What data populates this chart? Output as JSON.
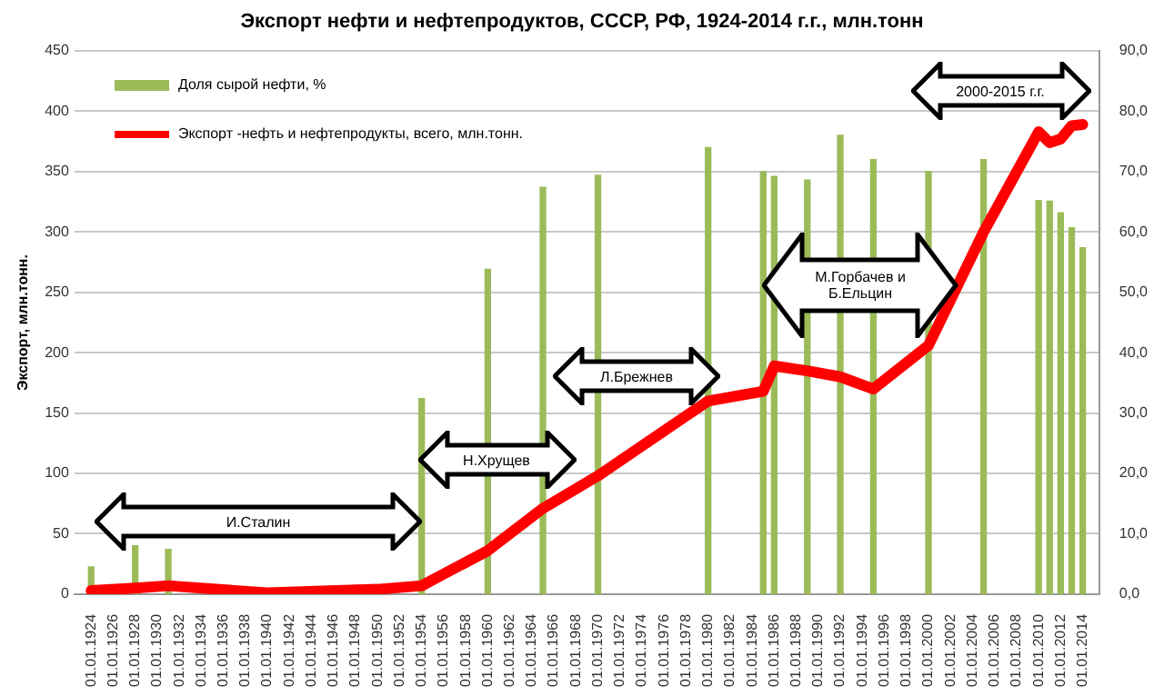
{
  "chart_data": {
    "type": "line",
    "title": "Экспорт нефти и нефтепродуктов,  СССР, РФ, 1924-2014 г.г., млн.тонн",
    "ylabel": "Экспорт, млн.тонн.",
    "xlim": [
      "1923-07",
      "2014-07"
    ],
    "xticks": [
      {
        "value": "1924",
        "label": "01.01.1924"
      },
      {
        "value": "1926",
        "label": "01.01.1926"
      },
      {
        "value": "1928",
        "label": "01.01.1928"
      },
      {
        "value": "1930",
        "label": "01.01.1930"
      },
      {
        "value": "1932",
        "label": "01.01.1932"
      },
      {
        "value": "1934",
        "label": "01.01.1934"
      },
      {
        "value": "1936",
        "label": "01.01.1936"
      },
      {
        "value": "1938",
        "label": "01.01.1938"
      },
      {
        "value": "1940",
        "label": "01.01.1940"
      },
      {
        "value": "1942",
        "label": "01.01.1942"
      },
      {
        "value": "1944",
        "label": "01.01.1944"
      },
      {
        "value": "1946",
        "label": "01.01.1946"
      },
      {
        "value": "1948",
        "label": "01.01.1948"
      },
      {
        "value": "1950",
        "label": "01.01.1950"
      },
      {
        "value": "1952",
        "label": "01.01.1952"
      },
      {
        "value": "1954",
        "label": "01.01.1954"
      },
      {
        "value": "1956",
        "label": "01.01.1956"
      },
      {
        "value": "1958",
        "label": "01.01.1958"
      },
      {
        "value": "1960",
        "label": "01.01.1960"
      },
      {
        "value": "1962",
        "label": "01.01.1962"
      },
      {
        "value": "1964",
        "label": "01.01.1964"
      },
      {
        "value": "1966",
        "label": "01.01.1966"
      },
      {
        "value": "1968",
        "label": "01.01.1968"
      },
      {
        "value": "1970",
        "label": "01.01.1970"
      },
      {
        "value": "1972",
        "label": "01.01.1972"
      },
      {
        "value": "1974",
        "label": "01.01.1974"
      },
      {
        "value": "1976",
        "label": "01.01.1976"
      },
      {
        "value": "1978",
        "label": "01.01.1978"
      },
      {
        "value": "1980",
        "label": "01.01.1980"
      },
      {
        "value": "1982",
        "label": "01.01.1982"
      },
      {
        "value": "1984",
        "label": "01.01.1984"
      },
      {
        "value": "1986",
        "label": "01.01.1986"
      },
      {
        "value": "1988",
        "label": "01.01.1988"
      },
      {
        "value": "1990",
        "label": "01.01.1990"
      },
      {
        "value": "1992",
        "label": "01.01.1992"
      },
      {
        "value": "1994",
        "label": "01.01.1994"
      },
      {
        "value": "1996",
        "label": "01.01.1996"
      },
      {
        "value": "1998",
        "label": "01.01.1998"
      },
      {
        "value": "2000",
        "label": "01.01.2000"
      },
      {
        "value": "2002",
        "label": "01.01.2002"
      },
      {
        "value": "2004",
        "label": "01.01.2004"
      },
      {
        "value": "2006",
        "label": "01.01.2006"
      },
      {
        "value": "2008",
        "label": "01.01.2008"
      },
      {
        "value": "2010",
        "label": "01.01.2010"
      },
      {
        "value": "2012",
        "label": "01.01.2012"
      },
      {
        "value": "2014",
        "label": "01.01.2014"
      }
    ],
    "ylim": [
      0,
      450
    ],
    "yticks": [
      0,
      50,
      100,
      150,
      200,
      250,
      300,
      350,
      400,
      450
    ],
    "y2lim": [
      0,
      90
    ],
    "y2ticks": [
      {
        "value": 0,
        "label": "0,0"
      },
      {
        "value": 10,
        "label": "10,0"
      },
      {
        "value": 20,
        "label": "20,0"
      },
      {
        "value": 30,
        "label": "30,0"
      },
      {
        "value": 40,
        "label": "40,0"
      },
      {
        "value": 50,
        "label": "50,0"
      },
      {
        "value": 60,
        "label": "60,0"
      },
      {
        "value": 70,
        "label": "70,0"
      },
      {
        "value": 80,
        "label": "80,0"
      },
      {
        "value": 90,
        "label": "90,0"
      }
    ],
    "series": [
      {
        "name": "Доля сырой  нефти, %",
        "type": "bar",
        "axis": "y2",
        "color": "#9bbb59",
        "x": [
          "1924",
          "1928",
          "1931",
          "1954",
          "1960",
          "1965",
          "1970",
          "1980",
          "1985",
          "1986",
          "1989",
          "1992",
          "1995",
          "2000",
          "2005",
          "2010",
          "2011",
          "2012",
          "2013",
          "2014"
        ],
        "values": [
          4.5,
          8,
          7.4,
          32.4,
          53.8,
          67.4,
          69.4,
          74,
          70,
          69.2,
          68.6,
          76,
          72,
          70,
          72,
          65.2,
          65.1,
          63.2,
          60.7,
          57.4
        ]
      },
      {
        "name": "Экспорт -нефть и нефтепродукты,  всего, млн.тонн.",
        "color": "#ff0000",
        "x": [
          "1924",
          "1928",
          "1931",
          "1940",
          "1950",
          "1954",
          "1960",
          "1965",
          "1970",
          "1980",
          "1985",
          "1986",
          "1989",
          "1992",
          "1995",
          "2000",
          "2005",
          "2010",
          "2011",
          "2012",
          "2013",
          "2014"
        ],
        "values": [
          3,
          5,
          7,
          1,
          4,
          7,
          36,
          71,
          98,
          160,
          168,
          189,
          185,
          180,
          170,
          206,
          300,
          383,
          374,
          377,
          388,
          389
        ]
      }
    ],
    "annotations": [
      "И.Сталин",
      "Н.Хрущев",
      "Л.Брежнев",
      "М.Горбачев и Б.Ельцин",
      "2000-2015 г.г."
    ],
    "grid": "y",
    "legend": "top left",
    "marker": "none",
    "line_style": "solid"
  }
}
